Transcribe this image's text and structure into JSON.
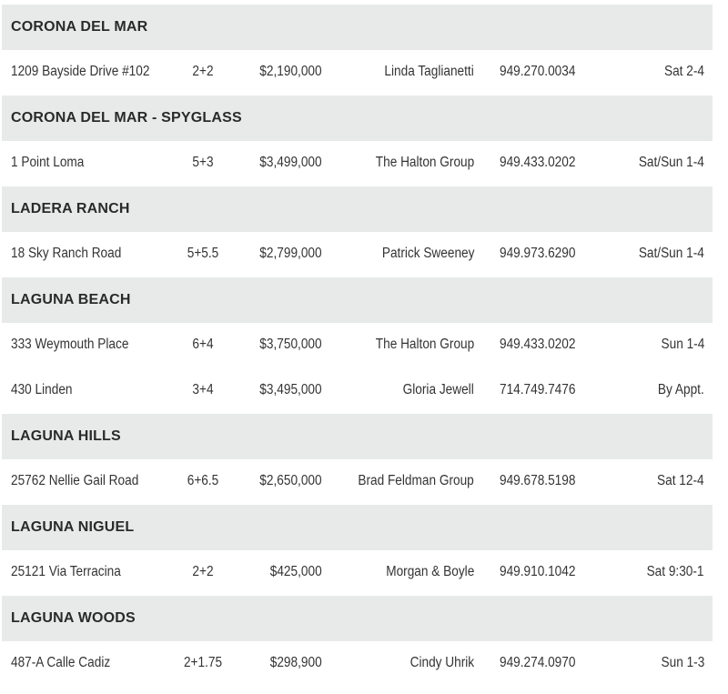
{
  "colors": {
    "section_bg": "#e8eaea",
    "text": "#333333"
  },
  "sections": [
    {
      "title": "CORONA DEL MAR",
      "listings": [
        {
          "address": "1209 Bayside Drive #102",
          "bed_bath": "2+2",
          "price": "$2,190,000",
          "agent": "Linda Taglianetti",
          "phone": "949.270.0034",
          "open_house": "Sat 2-4"
        }
      ]
    },
    {
      "title": "CORONA DEL MAR - SPYGLASS",
      "listings": [
        {
          "address": "1 Point Loma",
          "bed_bath": "5+3",
          "price": "$3,499,000",
          "agent": "The Halton Group",
          "phone": "949.433.0202",
          "open_house": "Sat/Sun 1-4"
        }
      ]
    },
    {
      "title": "LADERA RANCH",
      "listings": [
        {
          "address": "18 Sky Ranch Road",
          "bed_bath": "5+5.5",
          "price": "$2,799,000",
          "agent": "Patrick Sweeney",
          "phone": "949.973.6290",
          "open_house": "Sat/Sun 1-4"
        }
      ]
    },
    {
      "title": "LAGUNA BEACH",
      "listings": [
        {
          "address": "333 Weymouth Place",
          "bed_bath": "6+4",
          "price": "$3,750,000",
          "agent": "The Halton Group",
          "phone": "949.433.0202",
          "open_house": "Sun 1-4"
        },
        {
          "address": "430 Linden",
          "bed_bath": "3+4",
          "price": "$3,495,000",
          "agent": "Gloria Jewell",
          "phone": "714.749.7476",
          "open_house": "By Appt."
        }
      ]
    },
    {
      "title": "LAGUNA HILLS",
      "listings": [
        {
          "address": "25762 Nellie Gail Road",
          "bed_bath": "6+6.5",
          "price": "$2,650,000",
          "agent": "Brad Feldman Group",
          "phone": "949.678.5198",
          "open_house": "Sat 12-4"
        }
      ]
    },
    {
      "title": "LAGUNA NIGUEL",
      "listings": [
        {
          "address": "25121 Via Terracina",
          "bed_bath": "2+2",
          "price": "$425,000",
          "agent": "Morgan & Boyle",
          "phone": "949.910.1042",
          "open_house": "Sat 9:30-1"
        }
      ]
    },
    {
      "title": "LAGUNA WOODS",
      "listings": [
        {
          "address": "487-A Calle Cadiz",
          "bed_bath": "2+1.75",
          "price": "$298,900",
          "agent": "Cindy Uhrik",
          "phone": "949.274.0970",
          "open_house": "Sun 1-3"
        }
      ]
    }
  ]
}
